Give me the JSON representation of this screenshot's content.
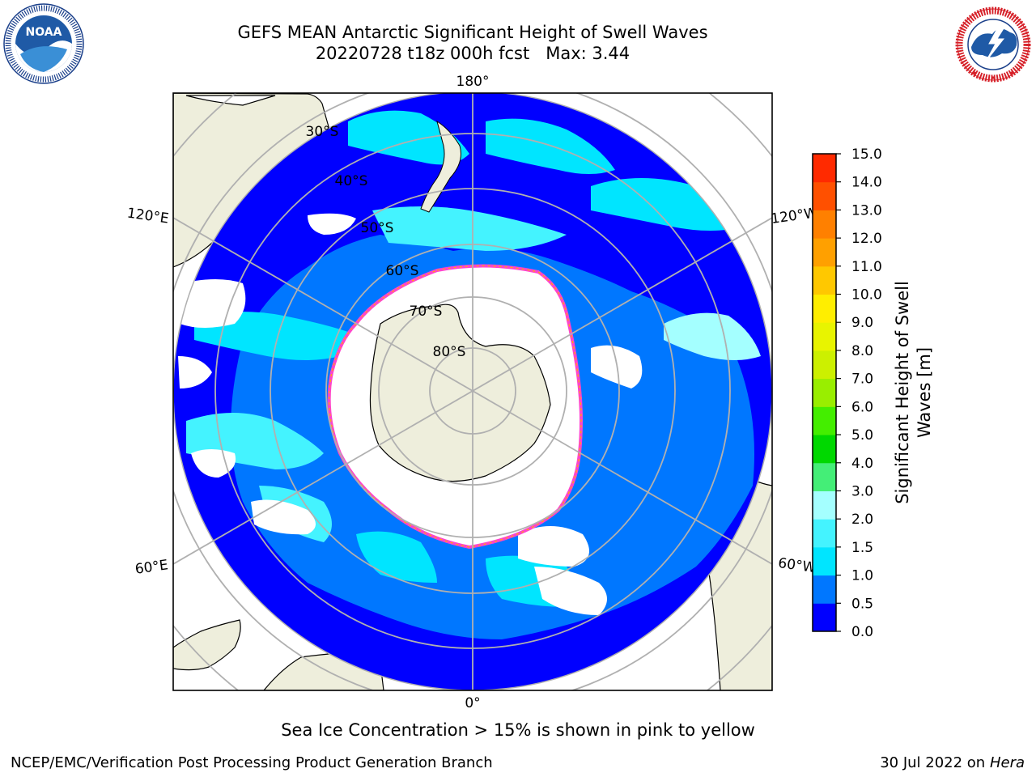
{
  "header": {
    "title_line1": "GEFS MEAN Antarctic Significant Height of Swell Waves",
    "title_line2": "20220728 t18z 000h fcst   Max: 3.44"
  },
  "logos": {
    "noaa": {
      "name": "noaa-logo",
      "text": "NOAA",
      "ring_text": "NATIONAL OCEANIC AND ATMOSPHERIC ADMINISTRATION • U.S. DEPARTMENT OF COMMERCE"
    },
    "nws": {
      "name": "nws-logo",
      "ring_text": "NATIONAL WEATHER SERVICE"
    }
  },
  "map": {
    "projection": "south polar stereographic",
    "longitude_labels": {
      "top": "180°",
      "bottom": "0°",
      "upper_left": "120°E",
      "lower_left": "60°E",
      "upper_right": "120°W",
      "lower_right": "60°W"
    },
    "latitude_labels": [
      "30°S",
      "40°S",
      "50°S",
      "60°S",
      "70°S",
      "80°S"
    ],
    "colors": {
      "land": "#eeeedc",
      "sea_ice_edge": "#ff44cc",
      "grid": "#b0b0b0"
    }
  },
  "colorbar": {
    "label": "Significant Height of Swell Waves [m]",
    "ticks": [
      "0.0",
      "0.5",
      "1.0",
      "1.5",
      "2.0",
      "3.0",
      "4.0",
      "5.0",
      "6.0",
      "7.0",
      "8.0",
      "9.0",
      "10.0",
      "11.0",
      "12.0",
      "13.0",
      "14.0",
      "15.0"
    ],
    "colors": [
      "#0000ff",
      "#0077ff",
      "#00e5ff",
      "#44f3ff",
      "#a4ffff",
      "#44ee77",
      "#00d800",
      "#44ee00",
      "#99ee00",
      "#ccf000",
      "#e8f400",
      "#ffee00",
      "#ffc800",
      "#ffa000",
      "#ff8000",
      "#ff5000",
      "#ff2a00"
    ]
  },
  "notes": {
    "sea_ice": "Sea Ice Concentration > 15% is shown in pink to yellow"
  },
  "footer": {
    "left": "NCEP/EMC/Verification Post Processing Product Generation Branch",
    "date": "30 Jul 2022 on ",
    "machine": "Hera"
  }
}
